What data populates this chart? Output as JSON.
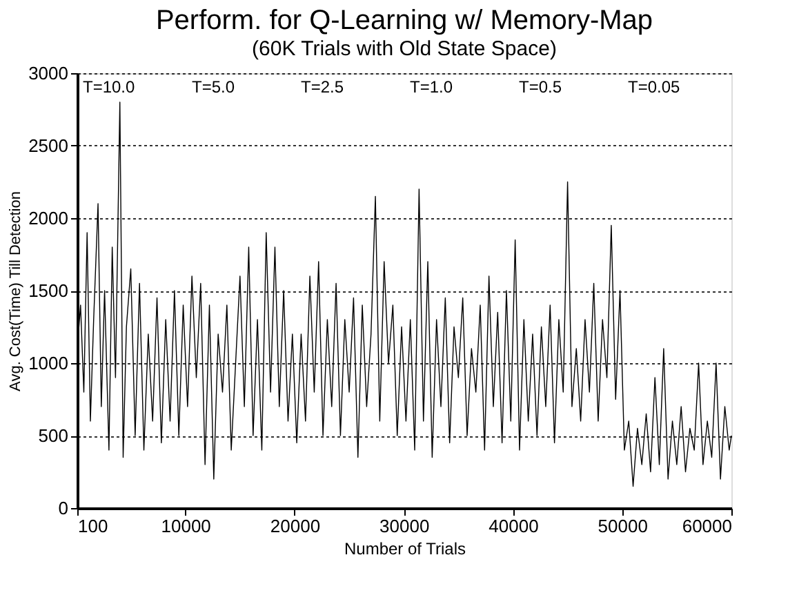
{
  "chart_data": {
    "type": "line",
    "title": "Perform. for Q-Learning w/ Memory-Map",
    "subtitle": "(60K Trials with Old State Space)",
    "xlabel": "Number of Trials",
    "ylabel": "Avg. Cost(Time) Till Detection",
    "xlim": [
      100,
      60000
    ],
    "xticks": [
      100,
      10000,
      20000,
      30000,
      40000,
      50000,
      60000
    ],
    "ylim": [
      0,
      3000
    ],
    "yticks": [
      0,
      500,
      1000,
      1500,
      2000,
      2500,
      3000
    ],
    "grid": "y",
    "marker": "none",
    "line_style": "solid",
    "annotations": [
      "T=10.0",
      "T=5.0",
      "T=2.5",
      "T=1.0",
      "T=0.5",
      "T=0.05"
    ],
    "x": [
      100,
      400,
      700,
      1000,
      1300,
      1600,
      2000,
      2300,
      2600,
      3000,
      3300,
      3600,
      4000,
      4300,
      4600,
      5000,
      5400,
      5800,
      6200,
      6600,
      7000,
      7400,
      7800,
      8200,
      8600,
      9000,
      9400,
      9800,
      10200,
      10600,
      11000,
      11400,
      11800,
      12200,
      12600,
      13000,
      13400,
      13800,
      14200,
      14600,
      15000,
      15400,
      15800,
      16200,
      16600,
      17000,
      17400,
      17800,
      18200,
      18600,
      19000,
      19400,
      19800,
      20200,
      20600,
      21000,
      21400,
      21800,
      22200,
      22600,
      23000,
      23400,
      23800,
      24200,
      24600,
      25000,
      25400,
      25800,
      26200,
      26600,
      27000,
      27400,
      27800,
      28200,
      28600,
      29000,
      29400,
      29800,
      30200,
      30600,
      31000,
      31400,
      31800,
      32200,
      32600,
      33000,
      33400,
      33800,
      34200,
      34600,
      35000,
      35400,
      35800,
      36200,
      36600,
      37000,
      37400,
      37800,
      38200,
      38600,
      39000,
      39400,
      39800,
      40200,
      40600,
      41000,
      41400,
      41800,
      42200,
      42600,
      43000,
      43400,
      43800,
      44200,
      44600,
      45000,
      45400,
      45800,
      46200,
      46600,
      47000,
      47400,
      47800,
      48200,
      48600,
      49000,
      49400,
      49800,
      50200,
      50600,
      51000,
      51400,
      51800,
      52200,
      52600,
      53000,
      53400,
      53800,
      54200,
      54600,
      55000,
      55400,
      55800,
      56200,
      56600,
      57000,
      57400,
      57800,
      58200,
      58600,
      59000,
      59400,
      59800,
      60000
    ],
    "series": [
      {
        "color": "#000000",
        "values": [
          1100,
          1400,
          800,
          1900,
          600,
          1300,
          2100,
          700,
          1500,
          400,
          1800,
          900,
          2800,
          350,
          1250,
          1650,
          500,
          1550,
          400,
          1200,
          600,
          1450,
          450,
          1300,
          600,
          1500,
          500,
          1400,
          700,
          1600,
          900,
          1550,
          300,
          1400,
          200,
          1200,
          800,
          1400,
          400,
          1000,
          1600,
          700,
          1800,
          500,
          1300,
          400,
          1900,
          800,
          1800,
          700,
          1500,
          600,
          1200,
          450,
          1200,
          600,
          1600,
          800,
          1700,
          500,
          1300,
          700,
          1550,
          500,
          1300,
          800,
          1450,
          350,
          1400,
          700,
          1200,
          2150,
          600,
          1700,
          1000,
          1400,
          500,
          1250,
          600,
          1300,
          400,
          2200,
          600,
          1700,
          350,
          1300,
          700,
          1450,
          450,
          1250,
          900,
          1450,
          500,
          1100,
          800,
          1400,
          400,
          1600,
          700,
          1350,
          450,
          1500,
          600,
          1850,
          400,
          1300,
          600,
          1200,
          500,
          1250,
          700,
          1400,
          450,
          1300,
          800,
          2250,
          700,
          1100,
          600,
          1300,
          800,
          1550,
          600,
          1300,
          900,
          1950,
          750,
          1500,
          400,
          600,
          150,
          550,
          300,
          650,
          250,
          900,
          300,
          1100,
          200,
          600,
          300,
          700,
          250,
          550,
          400,
          1000,
          300,
          600,
          350,
          1000,
          200,
          700,
          400,
          500
        ]
      }
    ]
  }
}
